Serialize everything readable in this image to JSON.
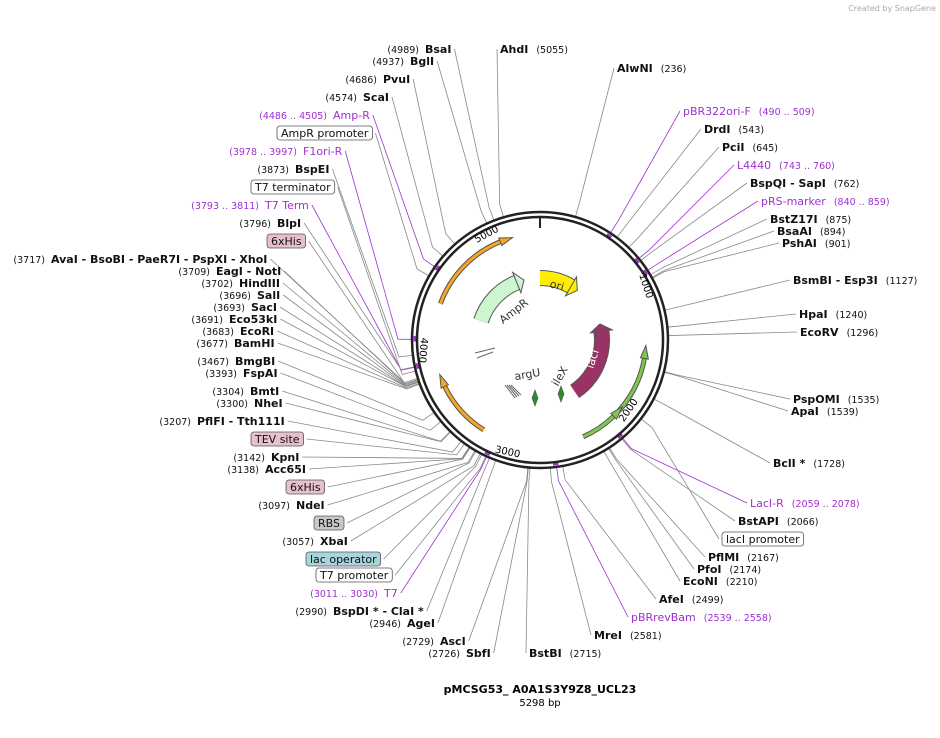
{
  "header": "Created by SnapGene",
  "title": "pMCSG53_ A0A1S3Y9Z8_UCL23",
  "size": "5298 bp",
  "ticks": [
    "1000",
    "2000",
    "3000",
    "4000",
    "5000"
  ],
  "features": [
    "ori",
    "AmpR",
    "lacI",
    "argU",
    "ileX"
  ],
  "labels": [
    {
      "name": "AhdI",
      "position": "(5055)"
    },
    {
      "name": "AlwNI",
      "position": "(236)"
    },
    {
      "name": "pBR322ori-F",
      "position": "(490 .. 509)"
    },
    {
      "name": "DrdI",
      "position": "(543)"
    },
    {
      "name": "PciI",
      "position": "(645)"
    },
    {
      "name": "L4440",
      "position": "(743 .. 760)"
    },
    {
      "name": "BspQI - SapI",
      "position": "(762)"
    },
    {
      "name": "pRS-marker",
      "position": "(840 .. 859)"
    },
    {
      "name": "BstZ17I",
      "position": "(875)"
    },
    {
      "name": "BsaAI",
      "position": "(894)"
    },
    {
      "name": "PshAI",
      "position": "(901)"
    },
    {
      "name": "BsmBI - Esp3I",
      "position": "(1127)"
    },
    {
      "name": "HpaI",
      "position": "(1240)"
    },
    {
      "name": "EcoRV",
      "position": "(1296)"
    },
    {
      "name": "PspOMI",
      "position": "(1535)"
    },
    {
      "name": "ApaI",
      "position": "(1539)"
    },
    {
      "name": "BclI *",
      "position": "(1728)"
    },
    {
      "name": "LacI-R",
      "position": "(2059 .. 2078)"
    },
    {
      "name": "BstAPI",
      "position": "(2066)"
    },
    {
      "name": "lacI promoter"
    },
    {
      "name": "PflMI",
      "position": "(2167)"
    },
    {
      "name": "PfoI",
      "position": "(2174)"
    },
    {
      "name": "EcoNI",
      "position": "(2210)"
    },
    {
      "name": "AfeI",
      "position": "(2499)"
    },
    {
      "name": "pBRrevBam",
      "position": "(2539 .. 2558)"
    },
    {
      "name": "MreI",
      "position": "(2581)"
    },
    {
      "name": "BstBI",
      "position": "(2715)"
    },
    {
      "name": "BsaI",
      "position": "(4989)"
    },
    {
      "name": "BglI",
      "position": "(4937)"
    },
    {
      "name": "PvuI",
      "position": "(4686)"
    },
    {
      "name": "ScaI",
      "position": "(4574)"
    },
    {
      "name": "Amp-R",
      "position": "(4486 .. 4505)"
    },
    {
      "name": "AmpR promoter"
    },
    {
      "name": "F1ori-R",
      "position": "(3978 .. 3997)"
    },
    {
      "name": "BspEI",
      "position": "(3873)"
    },
    {
      "name": "T7 terminator"
    },
    {
      "name": "T7 Term",
      "position": "(3793 .. 3811)"
    },
    {
      "name": "BlpI",
      "position": "(3796)"
    },
    {
      "name": "6xHis"
    },
    {
      "name": "AvaI - BsoBI - PaeR7I - PspXI - XhoI",
      "position": "(3717)"
    },
    {
      "name": "EagI - NotI",
      "position": "(3709)"
    },
    {
      "name": "HindIII",
      "position": "(3702)"
    },
    {
      "name": "SalI",
      "position": "(3696)"
    },
    {
      "name": "SacI",
      "position": "(3693)"
    },
    {
      "name": "Eco53kI",
      "position": "(3691)"
    },
    {
      "name": "EcoRI",
      "position": "(3683)"
    },
    {
      "name": "BamHI",
      "position": "(3677)"
    },
    {
      "name": "BmgBI",
      "position": "(3467)"
    },
    {
      "name": "FspAI",
      "position": "(3393)"
    },
    {
      "name": "BmtI",
      "position": "(3304)"
    },
    {
      "name": "NheI",
      "position": "(3300)"
    },
    {
      "name": "PflFI - Tth111I",
      "position": "(3207)"
    },
    {
      "name": "TEV site"
    },
    {
      "name": "KpnI",
      "position": "(3142)"
    },
    {
      "name": "Acc65I",
      "position": "(3138)"
    },
    {
      "name": "6xHis"
    },
    {
      "name": "NdeI",
      "position": "(3097)"
    },
    {
      "name": "RBS"
    },
    {
      "name": "XbaI",
      "position": "(3057)"
    },
    {
      "name": "lac operator"
    },
    {
      "name": "T7 promoter"
    },
    {
      "name": "T7",
      "position": "(3011 .. 3030)"
    },
    {
      "name": "BspDI * - ClaI *",
      "position": "(2990)"
    },
    {
      "name": "AgeI",
      "position": "(2946)"
    },
    {
      "name": "AscI",
      "position": "(2729)"
    },
    {
      "name": "SbfI",
      "position": "(2726)"
    }
  ]
}
